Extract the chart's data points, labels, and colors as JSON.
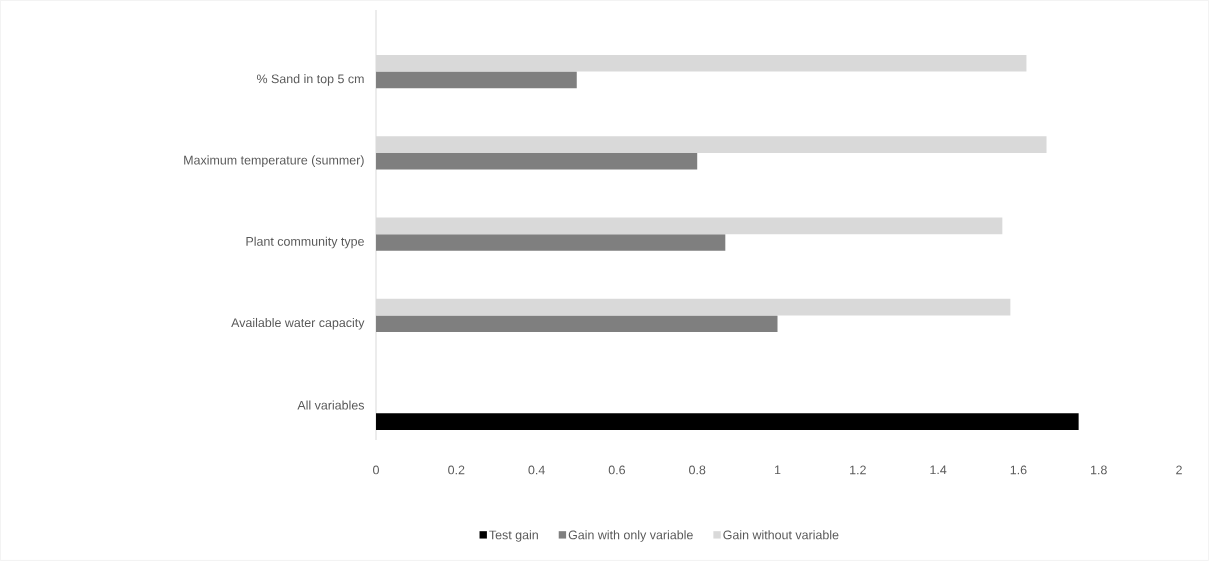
{
  "chart_data": {
    "type": "bar",
    "orientation": "horizontal",
    "categories": [
      "% Sand in top 5 cm",
      "Maximum temperature (summer)",
      "Plant community type",
      "Available water capacity",
      "All variables"
    ],
    "series": [
      {
        "name": "Test gain",
        "color": "#000000",
        "values": [
          null,
          null,
          null,
          null,
          1.75
        ]
      },
      {
        "name": "Gain with only variable",
        "color": "#7f7f7f",
        "values": [
          0.5,
          0.8,
          0.87,
          1.0,
          null
        ]
      },
      {
        "name": "Gain without variable",
        "color": "#d9d9d9",
        "values": [
          1.62,
          1.67,
          1.56,
          1.58,
          null
        ]
      }
    ],
    "xlim": [
      0,
      2
    ],
    "xticks": [
      0,
      0.2,
      0.4,
      0.6,
      0.8,
      1,
      1.2,
      1.4,
      1.6,
      1.8,
      2
    ],
    "grid": false,
    "legend": "bottom"
  }
}
